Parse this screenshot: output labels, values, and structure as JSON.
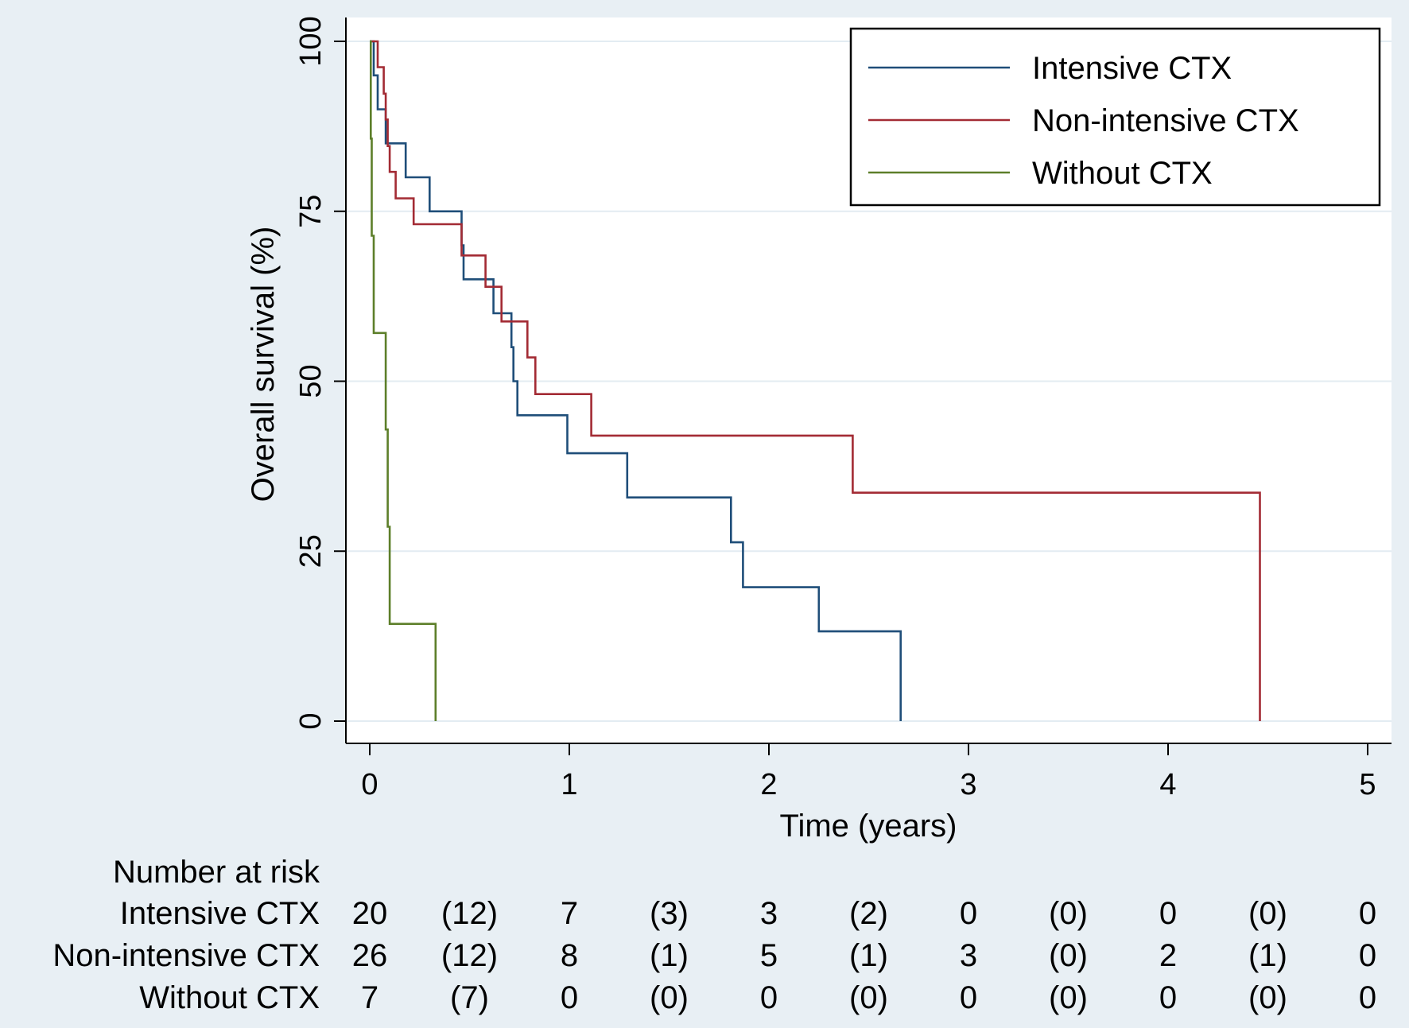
{
  "chart_data": {
    "type": "line",
    "step": true,
    "title": "",
    "xlabel": "Time (years)",
    "ylabel": "Overall survival (%)",
    "xlim": [
      0,
      5
    ],
    "ylim": [
      0,
      100
    ],
    "xticks": [
      "0",
      "1",
      "2",
      "3",
      "4",
      "5"
    ],
    "yticks": [
      "0",
      "25",
      "50",
      "75",
      "100"
    ],
    "grid": "horizontal",
    "legend": "top-right",
    "series": [
      {
        "name": "Intensive CTX",
        "color": "#1f4e79",
        "points": [
          [
            0,
            100
          ],
          [
            0.02,
            100
          ],
          [
            0.02,
            95
          ],
          [
            0.04,
            95
          ],
          [
            0.04,
            90
          ],
          [
            0.08,
            90
          ],
          [
            0.08,
            85
          ],
          [
            0.18,
            85
          ],
          [
            0.18,
            80
          ],
          [
            0.3,
            80
          ],
          [
            0.3,
            75
          ],
          [
            0.46,
            75
          ],
          [
            0.46,
            70
          ],
          [
            0.47,
            70
          ],
          [
            0.47,
            65
          ],
          [
            0.62,
            65
          ],
          [
            0.62,
            60
          ],
          [
            0.71,
            60
          ],
          [
            0.71,
            55
          ],
          [
            0.72,
            55
          ],
          [
            0.72,
            50
          ],
          [
            0.74,
            50
          ],
          [
            0.74,
            45
          ],
          [
            0.99,
            45
          ],
          [
            0.99,
            39.4
          ],
          [
            1.29,
            39.4
          ],
          [
            1.29,
            32.9
          ],
          [
            1.81,
            32.9
          ],
          [
            1.81,
            26.3
          ],
          [
            1.87,
            26.3
          ],
          [
            1.87,
            19.7
          ],
          [
            2.25,
            19.7
          ],
          [
            2.25,
            13.2
          ],
          [
            2.66,
            13.2
          ],
          [
            2.66,
            0
          ]
        ]
      },
      {
        "name": "Non-intensive CTX",
        "color": "#a32b34",
        "points": [
          [
            0,
            100
          ],
          [
            0.04,
            100
          ],
          [
            0.04,
            96.2
          ],
          [
            0.07,
            96.2
          ],
          [
            0.07,
            92.3
          ],
          [
            0.08,
            92.3
          ],
          [
            0.08,
            88.5
          ],
          [
            0.09,
            88.5
          ],
          [
            0.09,
            84.6
          ],
          [
            0.1,
            84.6
          ],
          [
            0.1,
            80.8
          ],
          [
            0.13,
            80.8
          ],
          [
            0.13,
            76.9
          ],
          [
            0.22,
            76.9
          ],
          [
            0.22,
            73.1
          ],
          [
            0.46,
            73.1
          ],
          [
            0.46,
            68.5
          ],
          [
            0.58,
            68.5
          ],
          [
            0.58,
            63.9
          ],
          [
            0.66,
            63.9
          ],
          [
            0.66,
            58.8
          ],
          [
            0.79,
            58.8
          ],
          [
            0.79,
            53.5
          ],
          [
            0.83,
            53.5
          ],
          [
            0.83,
            48.1
          ],
          [
            1.11,
            48.1
          ],
          [
            1.11,
            42
          ],
          [
            2.42,
            42
          ],
          [
            2.42,
            33.6
          ],
          [
            4.46,
            33.6
          ],
          [
            4.46,
            0
          ]
        ]
      },
      {
        "name": "Without CTX",
        "color": "#5d7f2a",
        "points": [
          [
            0,
            100
          ],
          [
            0.005,
            100
          ],
          [
            0.005,
            85.7
          ],
          [
            0.01,
            85.7
          ],
          [
            0.01,
            71.4
          ],
          [
            0.02,
            71.4
          ],
          [
            0.02,
            57.1
          ],
          [
            0.08,
            57.1
          ],
          [
            0.08,
            42.9
          ],
          [
            0.09,
            42.9
          ],
          [
            0.09,
            28.6
          ],
          [
            0.1,
            28.6
          ],
          [
            0.1,
            14.3
          ],
          [
            0.33,
            14.3
          ],
          [
            0.33,
            0
          ]
        ]
      }
    ],
    "risk_table": {
      "title": "Number at risk",
      "times": [
        0,
        0.5,
        1,
        1.5,
        2,
        2.5,
        3,
        3.5,
        4,
        4.5,
        5
      ],
      "rows": [
        {
          "label": "Intensive CTX",
          "values": [
            "20",
            "(12)",
            "7",
            "(3)",
            "3",
            "(2)",
            "0",
            "(0)",
            "0",
            "(0)",
            "0"
          ]
        },
        {
          "label": "Non-intensive CTX",
          "values": [
            "26",
            "(12)",
            "8",
            "(1)",
            "5",
            "(1)",
            "3",
            "(0)",
            "2",
            "(1)",
            "0"
          ]
        },
        {
          "label": "Without CTX",
          "values": [
            "7",
            "(7)",
            "0",
            "(0)",
            "0",
            "(0)",
            "0",
            "(0)",
            "0",
            "(0)",
            "0"
          ]
        }
      ]
    }
  }
}
